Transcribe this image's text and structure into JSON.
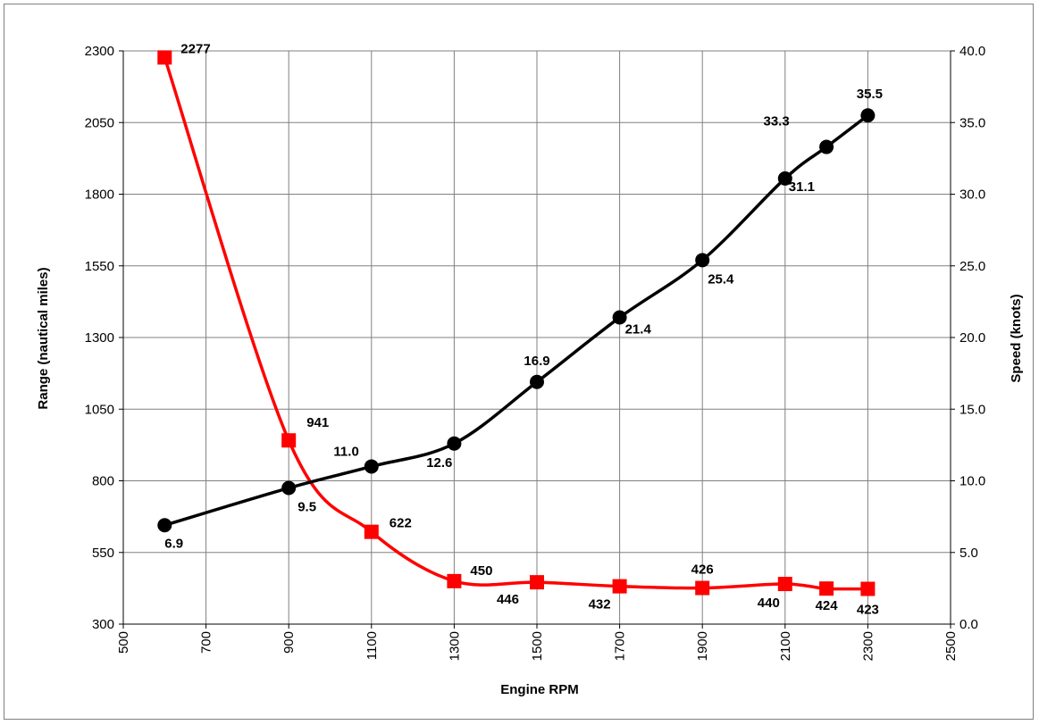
{
  "chart_data": {
    "type": "line",
    "title": "",
    "xlabel": "Engine RPM",
    "ylabel": "Range (nautical miles)",
    "y2label": "Speed (knots)",
    "xlim": [
      500,
      2500
    ],
    "ylim": [
      300,
      2300
    ],
    "y2lim": [
      0.0,
      40.0
    ],
    "x_ticks": [
      "500",
      "700",
      "900",
      "1100",
      "1300",
      "1500",
      "1700",
      "1900",
      "2100",
      "2300",
      "2500"
    ],
    "y_ticks": [
      "300",
      "550",
      "800",
      "1050",
      "1300",
      "1550",
      "1800",
      "2050",
      "2300"
    ],
    "y2_ticks": [
      "0.0",
      "5.0",
      "10.0",
      "15.0",
      "20.0",
      "25.0",
      "30.0",
      "35.0",
      "40.0"
    ],
    "grid": true,
    "legend": "none",
    "series": [
      {
        "axis": "left",
        "color": "#ff0000",
        "marker": "square",
        "x": [
          600,
          900,
          1100,
          1300,
          1500,
          1700,
          1900,
          2100,
          2200,
          2300
        ],
        "values": [
          2277,
          941,
          622,
          450,
          446,
          432,
          426,
          440,
          424,
          423
        ],
        "labels": [
          "2277",
          "941",
          "622",
          "450",
          "446",
          "432",
          "426",
          "440",
          "424",
          "423"
        ]
      },
      {
        "axis": "right",
        "color": "#000000",
        "marker": "circle",
        "x": [
          600,
          900,
          1100,
          1300,
          1500,
          1700,
          1900,
          2100,
          2200,
          2300
        ],
        "values": [
          6.9,
          9.5,
          11.0,
          12.6,
          16.9,
          21.4,
          25.4,
          31.1,
          33.3,
          35.5
        ],
        "labels": [
          "6.9",
          "9.5",
          "11.0",
          "12.6",
          "16.9",
          "21.4",
          "25.4",
          "31.1",
          "",
          "35.5"
        ]
      }
    ],
    "annotations": [
      "33.3"
    ]
  }
}
